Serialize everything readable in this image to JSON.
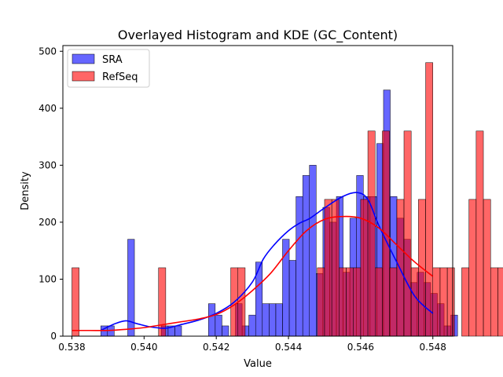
{
  "chart_data": {
    "type": "histogram",
    "title": "Overlayed Histogram and KDE (GC_Content)",
    "xlabel": "Value",
    "ylabel": "Density",
    "xlim": [
      0.53775,
      0.54855
    ],
    "ylim": [
      0,
      510
    ],
    "xticks": [
      "0.538",
      "0.540",
      "0.542",
      "0.544",
      "0.546",
      "0.548"
    ],
    "xtick_values": [
      0.538,
      0.54,
      0.542,
      0.544,
      0.546,
      0.548
    ],
    "yticks": [
      "0",
      "100",
      "200",
      "300",
      "400",
      "500"
    ],
    "ytick_values": [
      0,
      100,
      200,
      300,
      400,
      500
    ],
    "legend_position": "top-left",
    "series": [
      {
        "name": "SRA",
        "color": "#0000ff",
        "bin_start": 0.5388,
        "bin_width": 0.0001865,
        "values": [
          18,
          18,
          0,
          0,
          170,
          0,
          0,
          0,
          0,
          18,
          18,
          18,
          0,
          0,
          0,
          0,
          57,
          37,
          18,
          0,
          57,
          18,
          37,
          130,
          57,
          57,
          57,
          170,
          133,
          245,
          282,
          300,
          110,
          226,
          200,
          245,
          112,
          207,
          282,
          245,
          245,
          338,
          432,
          245,
          207,
          170,
          94,
          112,
          94,
          75,
          57,
          18,
          37
        ],
        "kde_x": [
          0.5388,
          0.5392,
          0.5395,
          0.5398,
          0.5402,
          0.5406,
          0.541,
          0.5415,
          0.542,
          0.5425,
          0.543,
          0.5433,
          0.5436,
          0.544,
          0.5443,
          0.5446,
          0.545,
          0.5455,
          0.5459,
          0.5462,
          0.5465,
          0.547,
          0.5475,
          0.548
        ],
        "kde_y": [
          10,
          22,
          27,
          22,
          16,
          14,
          20,
          28,
          40,
          60,
          95,
          135,
          160,
          185,
          198,
          207,
          225,
          245,
          252,
          240,
          195,
          130,
          70,
          40
        ]
      },
      {
        "name": "RefSeq",
        "color": "#ff0000",
        "bin_start": 0.538,
        "bin_width": 0.0002,
        "values": [
          120,
          0,
          0,
          0,
          0,
          0,
          0,
          0,
          0,
          0,
          0,
          0,
          120,
          0,
          0,
          0,
          0,
          0,
          0,
          0,
          0,
          0,
          120,
          120,
          0,
          0,
          0,
          0,
          0,
          0,
          0,
          0,
          0,
          0,
          120,
          240,
          240,
          120,
          120,
          120,
          240,
          360,
          120,
          360,
          120,
          240,
          360,
          120,
          240,
          480,
          120,
          120,
          120,
          0,
          120,
          240,
          360,
          240,
          120,
          120
        ],
        "kde_x": [
          0.538,
          0.5385,
          0.539,
          0.5395,
          0.54,
          0.5405,
          0.541,
          0.5415,
          0.542,
          0.5425,
          0.543,
          0.5435,
          0.544,
          0.5445,
          0.545,
          0.5455,
          0.546,
          0.5465,
          0.547,
          0.5475,
          0.548
        ],
        "kde_y": [
          10,
          10,
          10,
          12,
          15,
          20,
          25,
          30,
          38,
          55,
          80,
          110,
          150,
          185,
          205,
          210,
          207,
          190,
          160,
          130,
          105
        ]
      }
    ]
  }
}
